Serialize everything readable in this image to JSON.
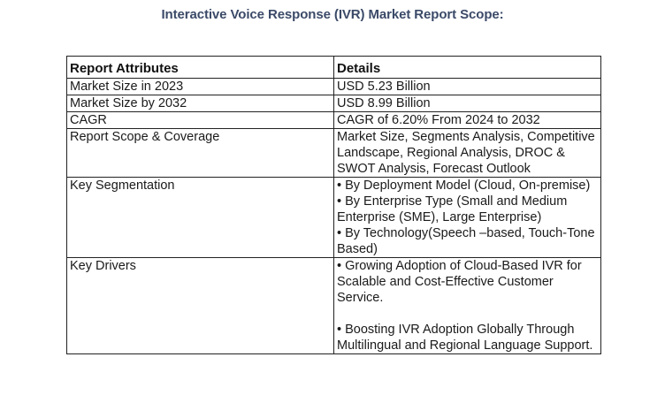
{
  "title": "Interactive Voice Response (IVR) Market Report Scope:",
  "table": {
    "headers": [
      "Report Attributes",
      "Details"
    ],
    "rows": [
      {
        "attribute": "Market Size in 2023",
        "details": [
          "USD 5.23 Billion"
        ]
      },
      {
        "attribute": "Market Size by 2032",
        "details": [
          "USD 8.99 Billion"
        ]
      },
      {
        "attribute": "CAGR",
        "details": [
          "CAGR of 6.20% From 2024 to 2032"
        ]
      },
      {
        "attribute": "Report Scope & Coverage",
        "details": [
          "Market Size, Segments Analysis, Competitive  Landscape, Regional Analysis, DROC & SWOT Analysis, Forecast Outlook"
        ]
      },
      {
        "attribute": "Key Segmentation",
        "details": [
          "• By Deployment Model (Cloud, On-premise)",
          "• By Enterprise Type (Small and Medium Enterprise (SME), Large Enterprise)",
          "• By Technology(Speech –based, Touch-Tone Based)"
        ]
      },
      {
        "attribute": "Key Drivers",
        "details": [
          "• Growing Adoption of Cloud-Based IVR for Scalable and Cost-Effective Customer Service.",
          "• Boosting IVR Adoption Globally Through Multilingual and Regional Language Support."
        ]
      }
    ]
  }
}
